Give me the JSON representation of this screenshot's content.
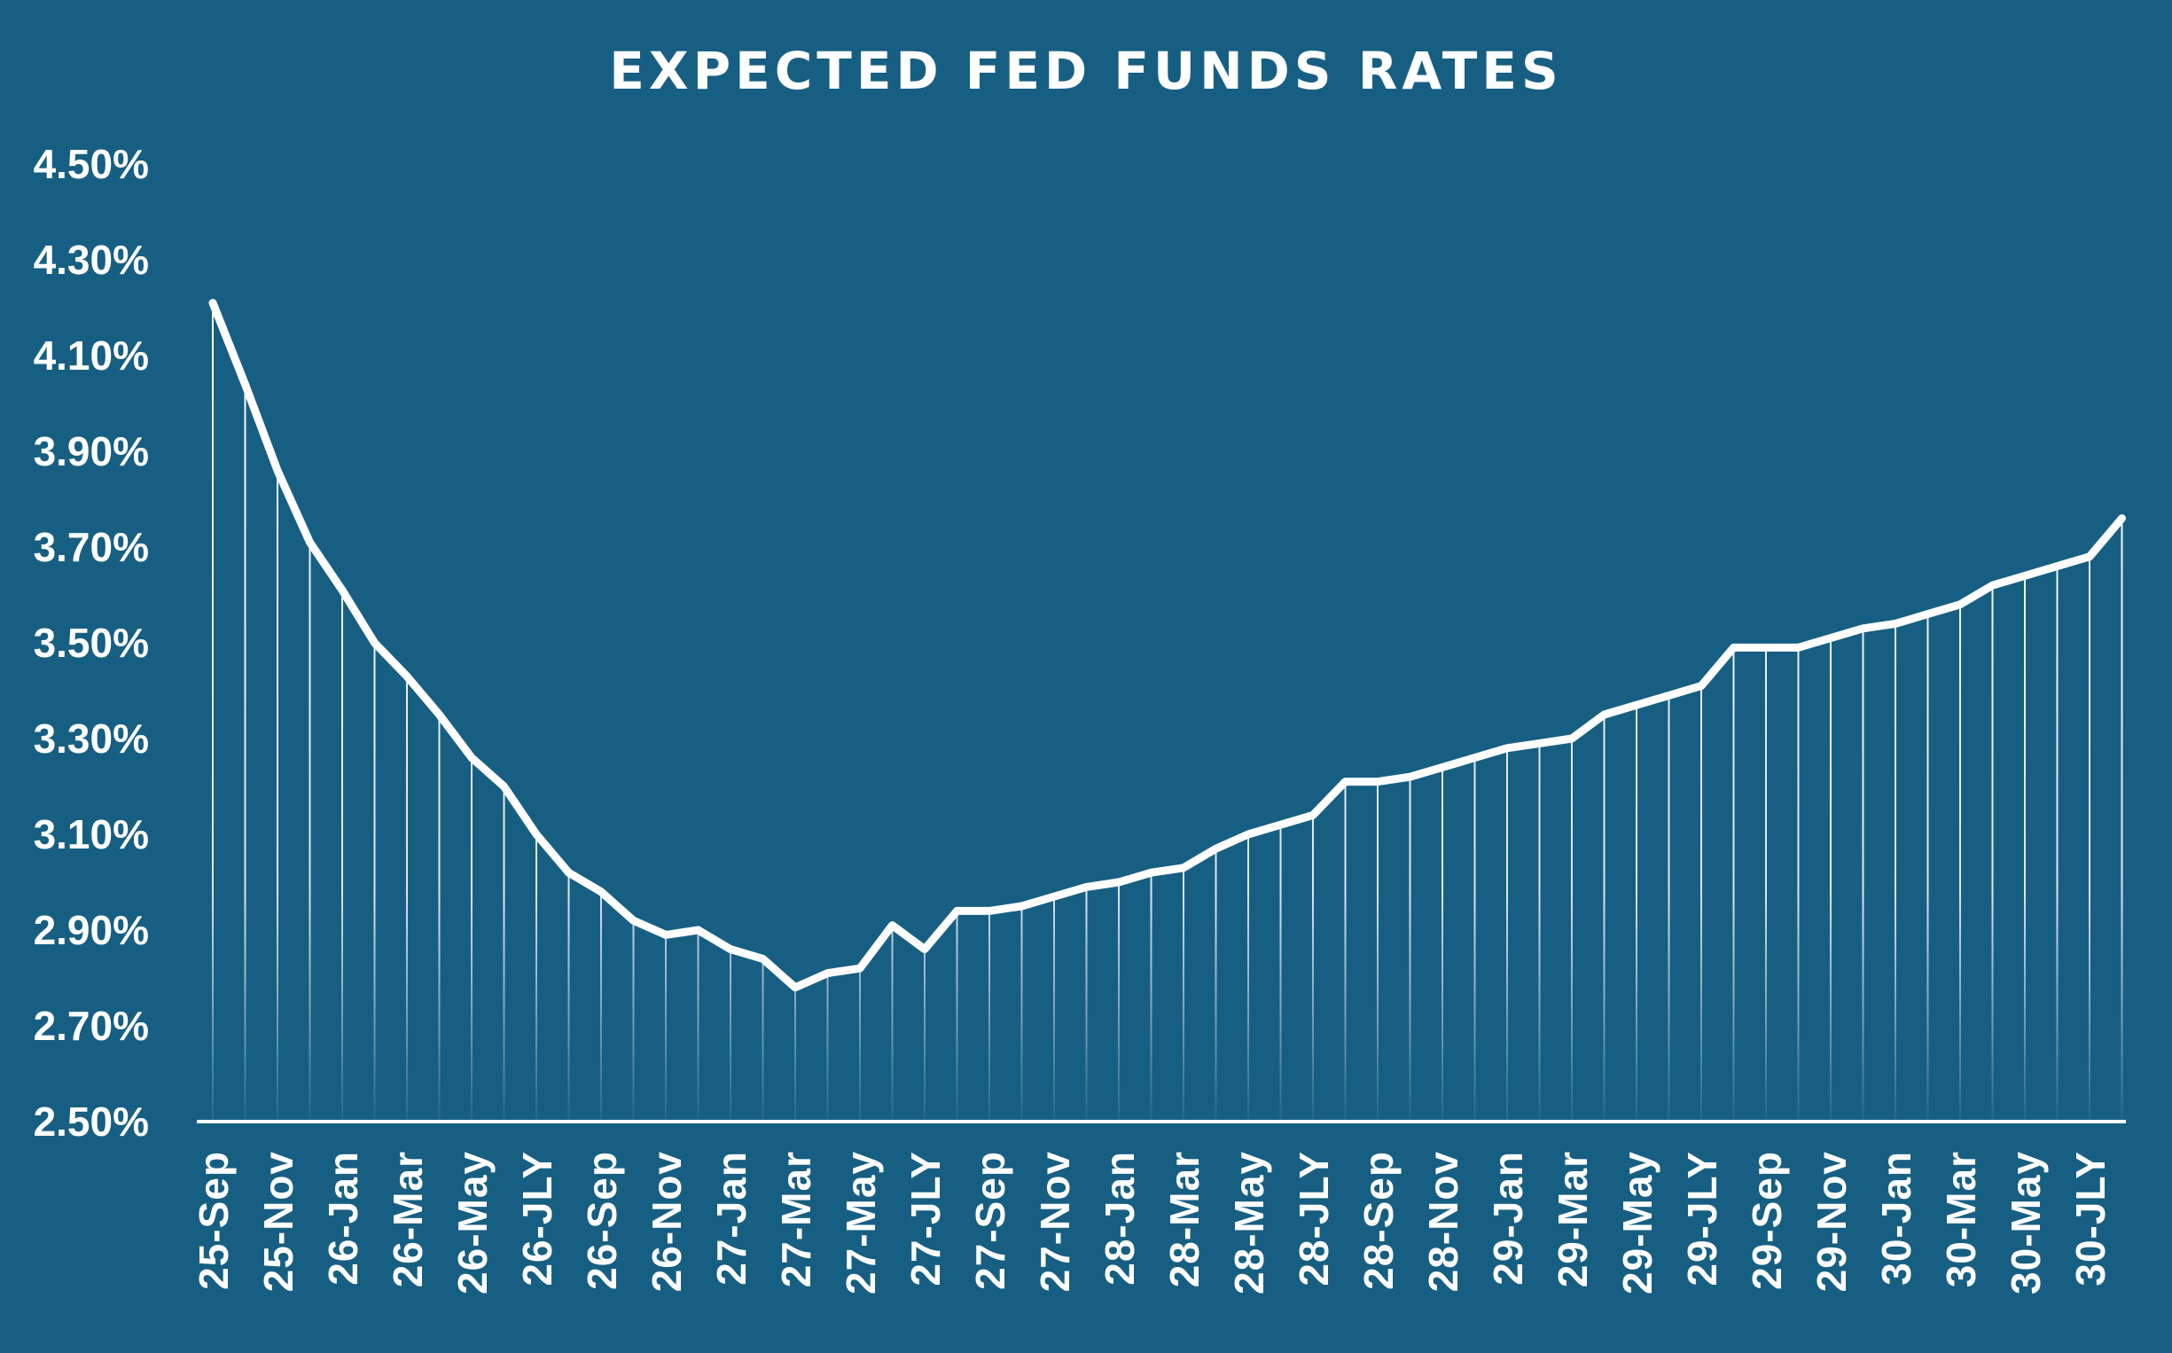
{
  "colors": {
    "background": "#175f82",
    "line": "#ffffff"
  },
  "chart_data": {
    "type": "line",
    "title": "EXPECTED FED FUNDS RATES",
    "xlabel": "",
    "ylabel": "",
    "ylim": [
      2.5,
      4.5
    ],
    "y_ticks": [
      "2.50%",
      "2.70%",
      "2.90%",
      "3.10%",
      "3.30%",
      "3.50%",
      "3.70%",
      "3.90%",
      "4.10%",
      "4.30%",
      "4.50%"
    ],
    "x_tick_labels": [
      "25-Sep",
      "25-Nov",
      "26-Jan",
      "26-Mar",
      "26-May",
      "26-JLY",
      "26-Sep",
      "26-Nov",
      "27-Jan",
      "27-Mar",
      "27-May",
      "27-JLY",
      "27-Sep",
      "27-Nov",
      "28-Jan",
      "28-Mar",
      "28-May",
      "28-JLY",
      "28-Sep",
      "28-Nov",
      "29-Jan",
      "29-Mar",
      "29-May",
      "29-JLY",
      "29-Sep",
      "29-Nov",
      "30-Jan",
      "30-Mar",
      "30-May",
      "30-JLY"
    ],
    "series": [
      {
        "name": "Expected Fed Funds Rate",
        "unit": "%",
        "values": [
          4.21,
          4.04,
          3.86,
          3.71,
          3.61,
          3.5,
          3.43,
          3.35,
          3.26,
          3.2,
          3.1,
          3.02,
          2.98,
          2.92,
          2.89,
          2.9,
          2.86,
          2.84,
          2.78,
          2.81,
          2.82,
          2.91,
          2.86,
          2.94,
          2.94,
          2.95,
          2.97,
          2.99,
          3.0,
          3.02,
          3.03,
          3.07,
          3.1,
          3.12,
          3.14,
          3.21,
          3.21,
          3.22,
          3.24,
          3.26,
          3.28,
          3.29,
          3.3,
          3.35,
          3.37,
          3.39,
          3.41,
          3.49,
          3.49,
          3.49,
          3.51,
          3.53,
          3.54,
          3.56,
          3.58,
          3.62,
          3.64,
          3.66,
          3.68,
          3.76
        ]
      }
    ]
  }
}
